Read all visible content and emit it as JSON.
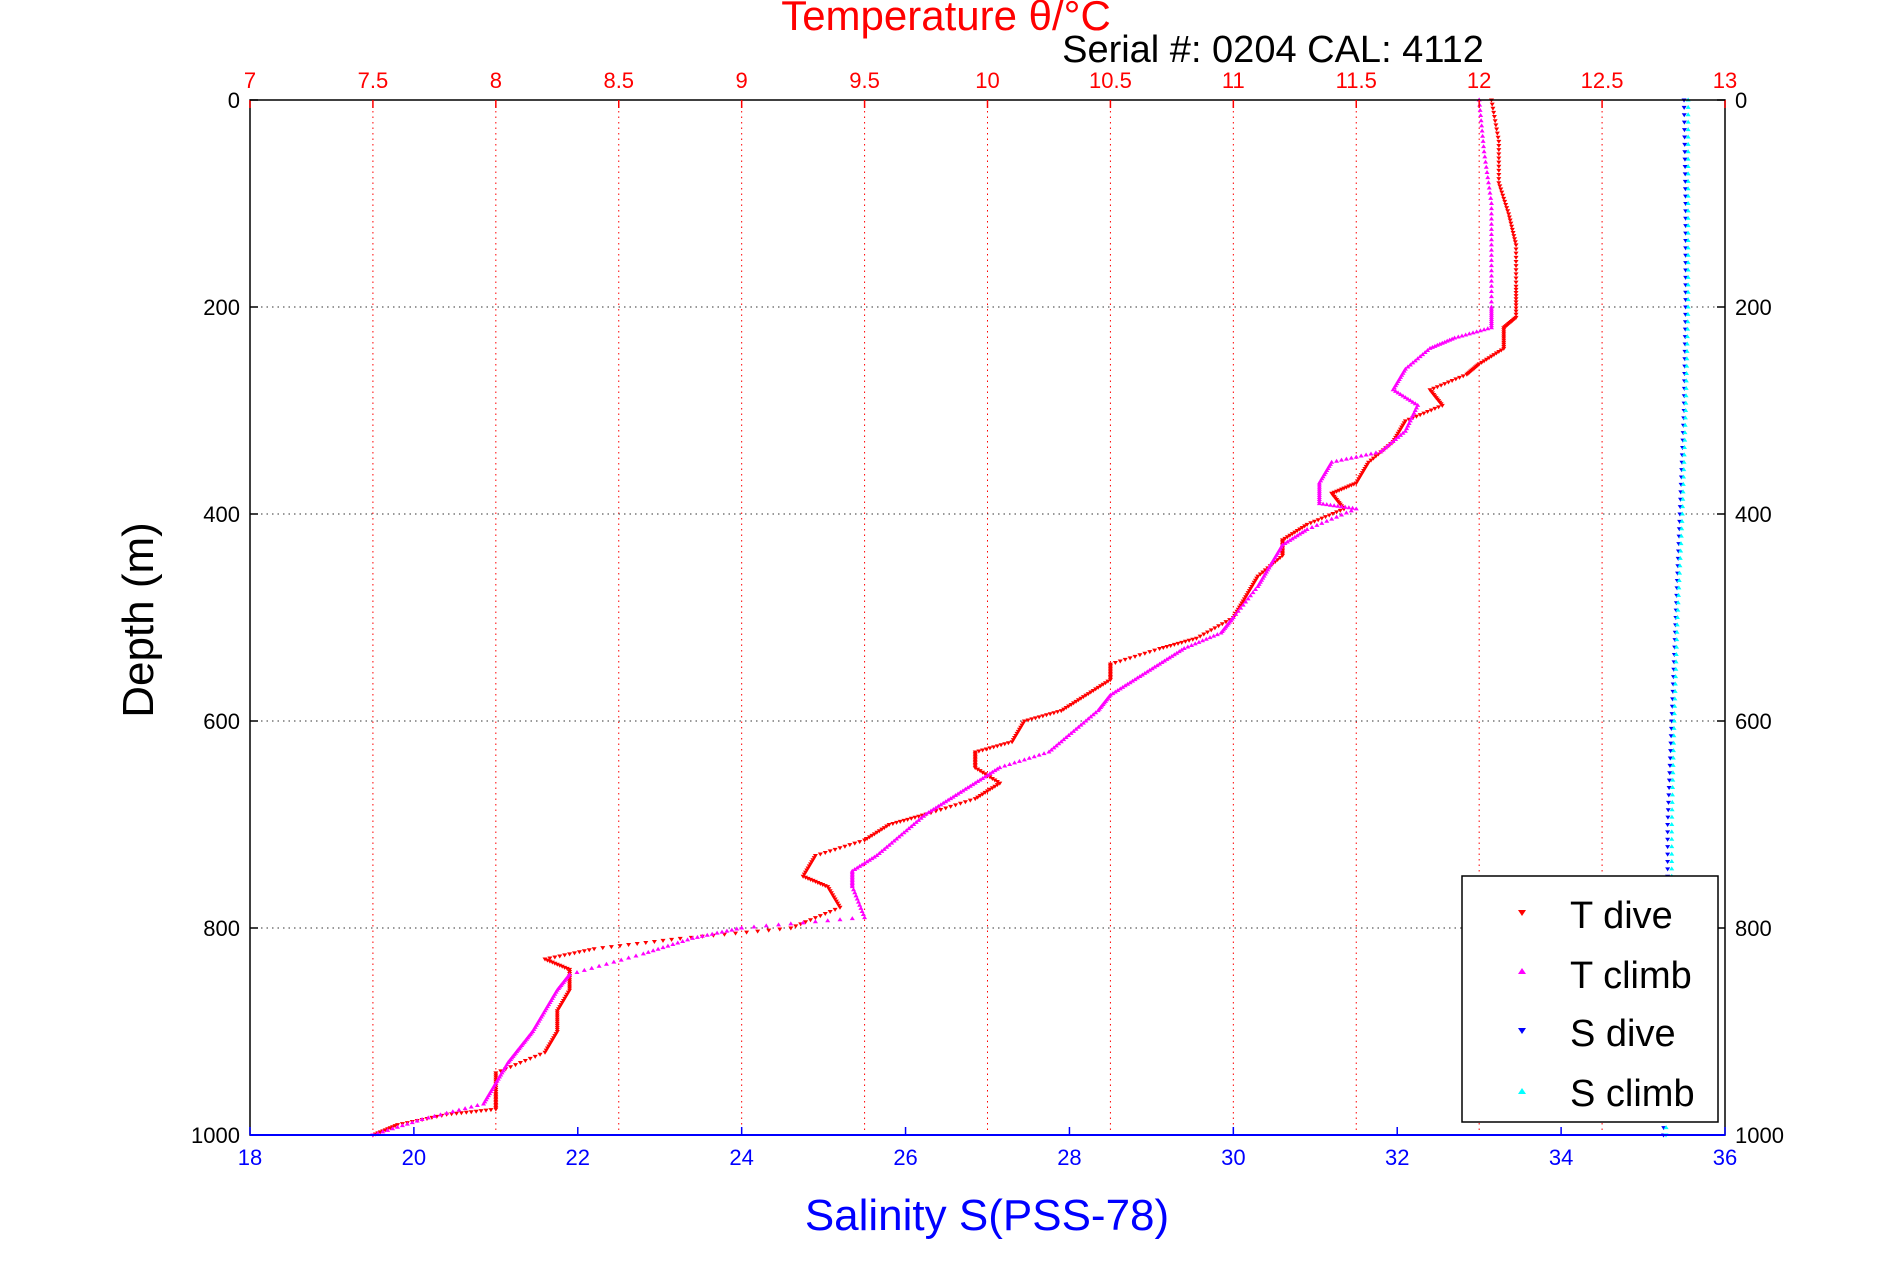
{
  "chart_data": {
    "type": "scatter",
    "title": "Temperature θ/°C",
    "subtitle": "Serial #: 0204  CAL: 4112",
    "ylabel": "Depth (m)",
    "xlabel": "Salinity S(PSS-78)",
    "top_axis": {
      "label": "Temperature θ/°C",
      "range": [
        7,
        13
      ],
      "ticks": [
        7,
        7.5,
        8,
        8.5,
        9,
        9.5,
        10,
        10.5,
        11,
        11.5,
        12,
        12.5,
        13
      ],
      "tick_labels": [
        "7",
        "7.5",
        "8",
        "8.5",
        "9",
        "9.5",
        "10",
        "10.5",
        "11",
        "11.5",
        "12",
        "12.5",
        "13"
      ],
      "color": "#ff0000",
      "grid": true
    },
    "bottom_axis": {
      "label": "Salinity S(PSS-78)",
      "range": [
        18,
        36
      ],
      "ticks": [
        18,
        20,
        22,
        24,
        26,
        28,
        30,
        32,
        34,
        36
      ],
      "tick_labels": [
        "18",
        "20",
        "22",
        "24",
        "26",
        "28",
        "30",
        "32",
        "34",
        "36"
      ],
      "color": "#0000ff"
    },
    "depth_axis": {
      "label": "Depth (m)",
      "range": [
        0,
        1000
      ],
      "reversed": true,
      "ticks": [
        0,
        200,
        400,
        600,
        800,
        1000
      ],
      "tick_labels": [
        "0",
        "200",
        "400",
        "600",
        "800",
        "1000"
      ],
      "grid": true
    },
    "legend_position": "bottom-right",
    "series": [
      {
        "name": "T dive",
        "axis": "top",
        "color": "#ff0000",
        "marker": "triangle-down",
        "points": [
          [
            12.05,
            0
          ],
          [
            12.08,
            40
          ],
          [
            12.08,
            80
          ],
          [
            12.12,
            110
          ],
          [
            12.15,
            140
          ],
          [
            12.15,
            180
          ],
          [
            12.15,
            210
          ],
          [
            12.1,
            220
          ],
          [
            12.1,
            240
          ],
          [
            12.0,
            255
          ],
          [
            11.95,
            265
          ],
          [
            11.8,
            280
          ],
          [
            11.85,
            295
          ],
          [
            11.7,
            310
          ],
          [
            11.65,
            330
          ],
          [
            11.55,
            350
          ],
          [
            11.5,
            370
          ],
          [
            11.4,
            380
          ],
          [
            11.45,
            395
          ],
          [
            11.3,
            410
          ],
          [
            11.2,
            425
          ],
          [
            11.2,
            440
          ],
          [
            11.1,
            460
          ],
          [
            11.05,
            480
          ],
          [
            11.0,
            500
          ],
          [
            10.85,
            520
          ],
          [
            10.7,
            530
          ],
          [
            10.5,
            545
          ],
          [
            10.5,
            560
          ],
          [
            10.4,
            575
          ],
          [
            10.3,
            590
          ],
          [
            10.15,
            600
          ],
          [
            10.1,
            620
          ],
          [
            9.95,
            630
          ],
          [
            9.95,
            645
          ],
          [
            10.05,
            660
          ],
          [
            9.95,
            675
          ],
          [
            9.75,
            690
          ],
          [
            9.6,
            700
          ],
          [
            9.5,
            715
          ],
          [
            9.3,
            730
          ],
          [
            9.25,
            750
          ],
          [
            9.35,
            760
          ],
          [
            9.4,
            780
          ],
          [
            9.2,
            800
          ],
          [
            8.75,
            810
          ],
          [
            8.4,
            820
          ],
          [
            8.2,
            830
          ],
          [
            8.3,
            840
          ],
          [
            8.3,
            860
          ],
          [
            8.25,
            880
          ],
          [
            8.25,
            900
          ],
          [
            8.2,
            920
          ],
          [
            8.0,
            940
          ],
          [
            8.0,
            960
          ],
          [
            8.0,
            975
          ],
          [
            7.8,
            980
          ],
          [
            7.6,
            990
          ],
          [
            7.5,
            1000
          ]
        ]
      },
      {
        "name": "T climb",
        "axis": "top",
        "color": "#ff00ff",
        "marker": "triangle-up",
        "points": [
          [
            12.0,
            0
          ],
          [
            12.02,
            50
          ],
          [
            12.05,
            100
          ],
          [
            12.05,
            150
          ],
          [
            12.05,
            200
          ],
          [
            12.05,
            220
          ],
          [
            11.9,
            230
          ],
          [
            11.8,
            240
          ],
          [
            11.7,
            260
          ],
          [
            11.65,
            280
          ],
          [
            11.75,
            295
          ],
          [
            11.7,
            320
          ],
          [
            11.6,
            340
          ],
          [
            11.4,
            350
          ],
          [
            11.35,
            370
          ],
          [
            11.35,
            390
          ],
          [
            11.5,
            395
          ],
          [
            11.3,
            415
          ],
          [
            11.2,
            430
          ],
          [
            11.15,
            450
          ],
          [
            11.1,
            470
          ],
          [
            11.0,
            500
          ],
          [
            10.95,
            515
          ],
          [
            10.8,
            530
          ],
          [
            10.7,
            545
          ],
          [
            10.6,
            560
          ],
          [
            10.5,
            575
          ],
          [
            10.45,
            590
          ],
          [
            10.35,
            610
          ],
          [
            10.25,
            630
          ],
          [
            10.05,
            645
          ],
          [
            9.95,
            660
          ],
          [
            9.85,
            675
          ],
          [
            9.75,
            690
          ],
          [
            9.65,
            710
          ],
          [
            9.55,
            730
          ],
          [
            9.45,
            745
          ],
          [
            9.45,
            760
          ],
          [
            9.5,
            790
          ],
          [
            9.0,
            800
          ],
          [
            8.8,
            810
          ],
          [
            8.6,
            825
          ],
          [
            8.3,
            845
          ],
          [
            8.25,
            860
          ],
          [
            8.2,
            880
          ],
          [
            8.15,
            900
          ],
          [
            8.1,
            915
          ],
          [
            8.05,
            930
          ],
          [
            8.0,
            950
          ],
          [
            7.95,
            970
          ],
          [
            7.7,
            985
          ],
          [
            7.5,
            1000
          ]
        ]
      },
      {
        "name": "S dive",
        "axis": "bottom",
        "color": "#0000ff",
        "marker": "triangle-down",
        "points": [
          [
            35.5,
            0
          ],
          [
            35.52,
            100
          ],
          [
            35.52,
            200
          ],
          [
            35.5,
            300
          ],
          [
            35.45,
            400
          ],
          [
            35.4,
            500
          ],
          [
            35.35,
            600
          ],
          [
            35.3,
            700
          ],
          [
            35.3,
            800
          ],
          [
            35.28,
            900
          ],
          [
            35.25,
            1000
          ]
        ]
      },
      {
        "name": "S climb",
        "axis": "bottom",
        "color": "#00ffff",
        "marker": "triangle-up",
        "points": [
          [
            35.55,
            0
          ],
          [
            35.55,
            100
          ],
          [
            35.55,
            200
          ],
          [
            35.52,
            300
          ],
          [
            35.48,
            400
          ],
          [
            35.42,
            500
          ],
          [
            35.38,
            600
          ],
          [
            35.35,
            700
          ],
          [
            35.35,
            800
          ],
          [
            35.3,
            900
          ],
          [
            35.28,
            1000
          ]
        ]
      }
    ]
  }
}
